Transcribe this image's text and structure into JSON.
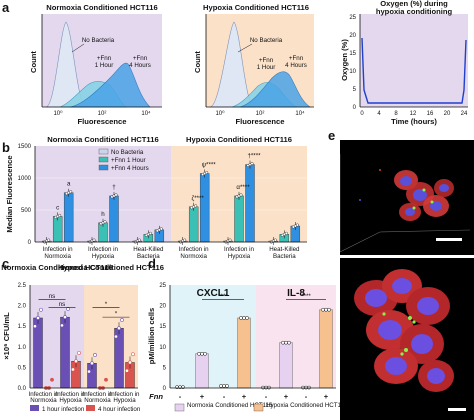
{
  "panel_letters": {
    "a": "a",
    "b": "b",
    "c": "c",
    "d": "d",
    "e": "e"
  },
  "colors": {
    "purple_bg": "#e3d8ee",
    "orange_bg": "#fbe1c8",
    "cyan_bg": "#dff3f8",
    "pink_bg": "#f9e3ee",
    "no_bacteria": "#c9d5ea",
    "fnn1": "#3ac0b5",
    "fnn4": "#2f8fe0",
    "sig": "#111111",
    "lav": "#e6d2f0",
    "peach": "#f7c08f",
    "red": "#d9534f",
    "purple_dot": "#6a4fb5"
  },
  "panel_a": {
    "hist1": {
      "title": "Normoxia Conditioned HCT116",
      "ylabel": "Count",
      "xlabel": "Fluorescence",
      "xticks": [
        "10⁰",
        "10²",
        "10⁴"
      ],
      "labels": {
        "nb": "No Bacteria",
        "f1a": "+Fnn",
        "f1b": "1 Hour",
        "f4a": "+Fnn",
        "f4b": "4 Hours"
      }
    },
    "hist2": {
      "title": "Hypoxia Conditioned HCT116",
      "ylabel": "Count",
      "xlabel": "Fluorescence",
      "xticks": [
        "10⁰",
        "10²",
        "10⁴"
      ],
      "labels": {
        "nb": "No Bacteria",
        "f1a": "+Fnn",
        "f1b": "1 Hour",
        "f4a": "+Fnn",
        "f4b": "4 Hours"
      }
    },
    "oxygen": {
      "title1": "Oxygen (%) during",
      "title2": "hypoxia conditioning",
      "ylabel": "Oxygen (%)",
      "xlabel": "Time (hours)",
      "xticks": [
        "0",
        "4",
        "8",
        "12",
        "16",
        "20",
        "24"
      ],
      "yticks": [
        "0",
        "5",
        "10",
        "15",
        "20",
        "25"
      ]
    }
  },
  "chart_data": [
    {
      "type": "bar",
      "id": "b",
      "title_left": "Normoxia Conditioned HCT116",
      "title_right": "Hypoxia Conditioned HCT116",
      "ylabel": "Median Fluorescence",
      "ylim": [
        0,
        1500
      ],
      "yticks": [
        "0",
        "500",
        "1000",
        "1500"
      ],
      "categories": [
        "Infection in Normoxia",
        "Infection in Hypoxia",
        "Heat-Killed Bacteria",
        "Infection in Normoxia",
        "Infection in Hypoxia",
        "Heat-Killed Bacteria"
      ],
      "category_labels": [
        [
          "Infection in",
          "Normoxia"
        ],
        [
          "Infection in",
          "Hypoxia"
        ],
        [
          "Heat-Killed",
          "Bacteria"
        ],
        [
          "Infection in",
          "Normoxia"
        ],
        [
          "Infection in",
          "Hypoxia"
        ],
        [
          "Heat-Killed",
          "Bacteria"
        ]
      ],
      "legend": [
        "No Bacteria",
        "+Fnn 1 Hour",
        "+Fnn 4 Hours"
      ],
      "series": [
        {
          "name": "No Bacteria",
          "values": [
            15,
            15,
            15,
            15,
            15,
            15
          ]
        },
        {
          "name": "+Fnn 1 Hour",
          "values": [
            400,
            300,
            120,
            550,
            720,
            120
          ]
        },
        {
          "name": "+Fnn 4 Hours",
          "values": [
            770,
            720,
            190,
            1070,
            1210,
            250
          ]
        }
      ],
      "annotations": [
        {
          "cat": 0,
          "series": 1,
          "text": "c"
        },
        {
          "cat": 0,
          "series": 2,
          "text": "a"
        },
        {
          "cat": 1,
          "series": 1,
          "text": "h"
        },
        {
          "cat": 1,
          "series": 2,
          "text": "†"
        },
        {
          "cat": 3,
          "series": 1,
          "text": "ζ****"
        },
        {
          "cat": 3,
          "series": 2,
          "text": "ψ****"
        },
        {
          "cat": 4,
          "series": 1,
          "text": "α****"
        },
        {
          "cat": 4,
          "series": 2,
          "text": "†****"
        }
      ]
    },
    {
      "type": "bar",
      "id": "c",
      "title_left": "Normoxia Conditioned HCT116",
      "title_right": "Hypoxia Conditioned HCT116",
      "ylabel": "×10⁶ CFU/mL",
      "ylim": [
        0,
        2.5
      ],
      "yticks": [
        "0.0",
        "0.5",
        "1.0",
        "1.5",
        "2.0",
        "2.5"
      ],
      "categories": [
        "Infection in Normoxia",
        "Infection in Hypoxia",
        "Infection in Normoxia",
        "Infection in Hypoxia"
      ],
      "category_labels": [
        [
          "Infection in",
          "Normoxia"
        ],
        [
          "Infection in",
          "Hypoxia"
        ],
        [
          "Infection in",
          "Normoxia"
        ],
        [
          "Infection in",
          "Hypoxia"
        ]
      ],
      "legend": [
        "1 hour infection",
        "4 hour infection"
      ],
      "series": [
        {
          "name": "1 hour infection",
          "values": [
            1.7,
            1.72,
            0.6,
            1.45
          ]
        },
        {
          "name": "4 hour infection",
          "values": [
            0.0,
            0.65,
            0.0,
            0.62
          ]
        }
      ],
      "sig": [
        "ns",
        "ns",
        "*",
        "*"
      ]
    },
    {
      "type": "bar",
      "id": "d",
      "title_left": "CXCL1",
      "title_right": "IL-8",
      "ylabel": "pM/million cells",
      "ylim": [
        0,
        25
      ],
      "yticks": [
        "0",
        "5",
        "10",
        "15",
        "20",
        "25"
      ],
      "row_label": "Fnn",
      "signs": [
        "-",
        "+",
        "-",
        "+",
        "-",
        "+",
        "-",
        "+"
      ],
      "legend": [
        "Normoxia Conditioned HCT116",
        "Hypoxia Conditioned HCT116"
      ],
      "values": [
        0.2,
        8.3,
        0.5,
        17.0,
        0.1,
        11.0,
        0.1,
        19.0
      ],
      "sig": [
        "****",
        "****"
      ]
    }
  ]
}
